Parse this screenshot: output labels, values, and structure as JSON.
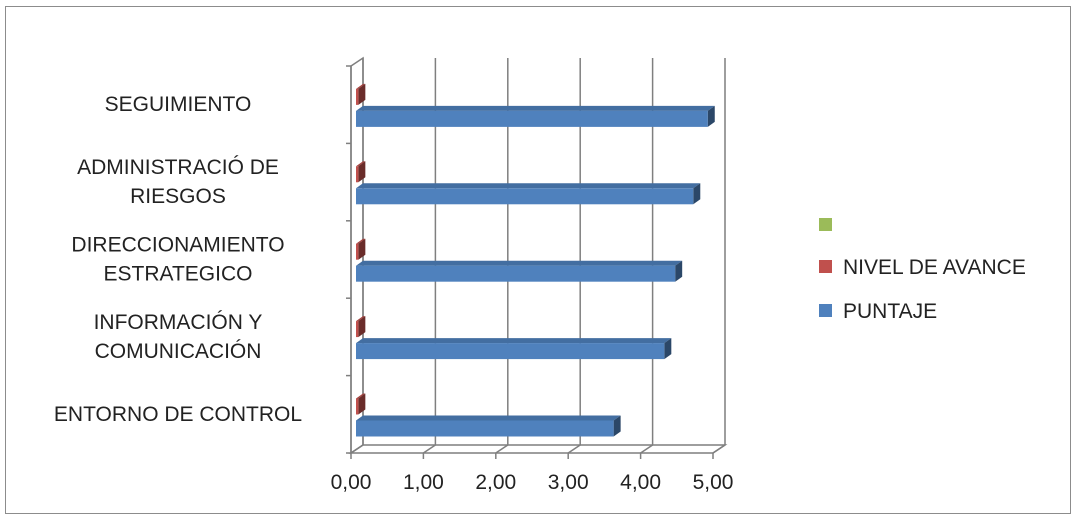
{
  "chart_data": {
    "type": "bar",
    "orientation": "horizontal",
    "style": "3d-clustered",
    "categories": [
      [
        "ENTORNO DE CONTROL"
      ],
      [
        "INFORMACIÓN Y",
        "COMUNICACIÓN"
      ],
      [
        "DIRECCIONAMIENTO",
        "ESTRATEGICO"
      ],
      [
        "ADMINISTRACIÓ DE",
        "RIESGOS"
      ],
      [
        "SEGUIMIENTO"
      ]
    ],
    "series": [
      {
        "name": "PUNTAJE",
        "color": "#4F81BD",
        "values": [
          3.6,
          4.3,
          4.45,
          4.7,
          4.9
        ]
      },
      {
        "name": "NIVEL DE AVANCE",
        "color": "#C0504D",
        "values": [
          0.06,
          0.06,
          0.06,
          0.06,
          0.06
        ]
      },
      {
        "name": "",
        "color": "#9BBB59",
        "values": [
          0,
          0,
          0,
          0,
          0
        ]
      }
    ],
    "xlim": [
      0,
      5
    ],
    "xticks": [
      "0,00",
      "1,00",
      "2,00",
      "3,00",
      "4,00",
      "5,00"
    ],
    "grid": true,
    "legend": "right"
  }
}
